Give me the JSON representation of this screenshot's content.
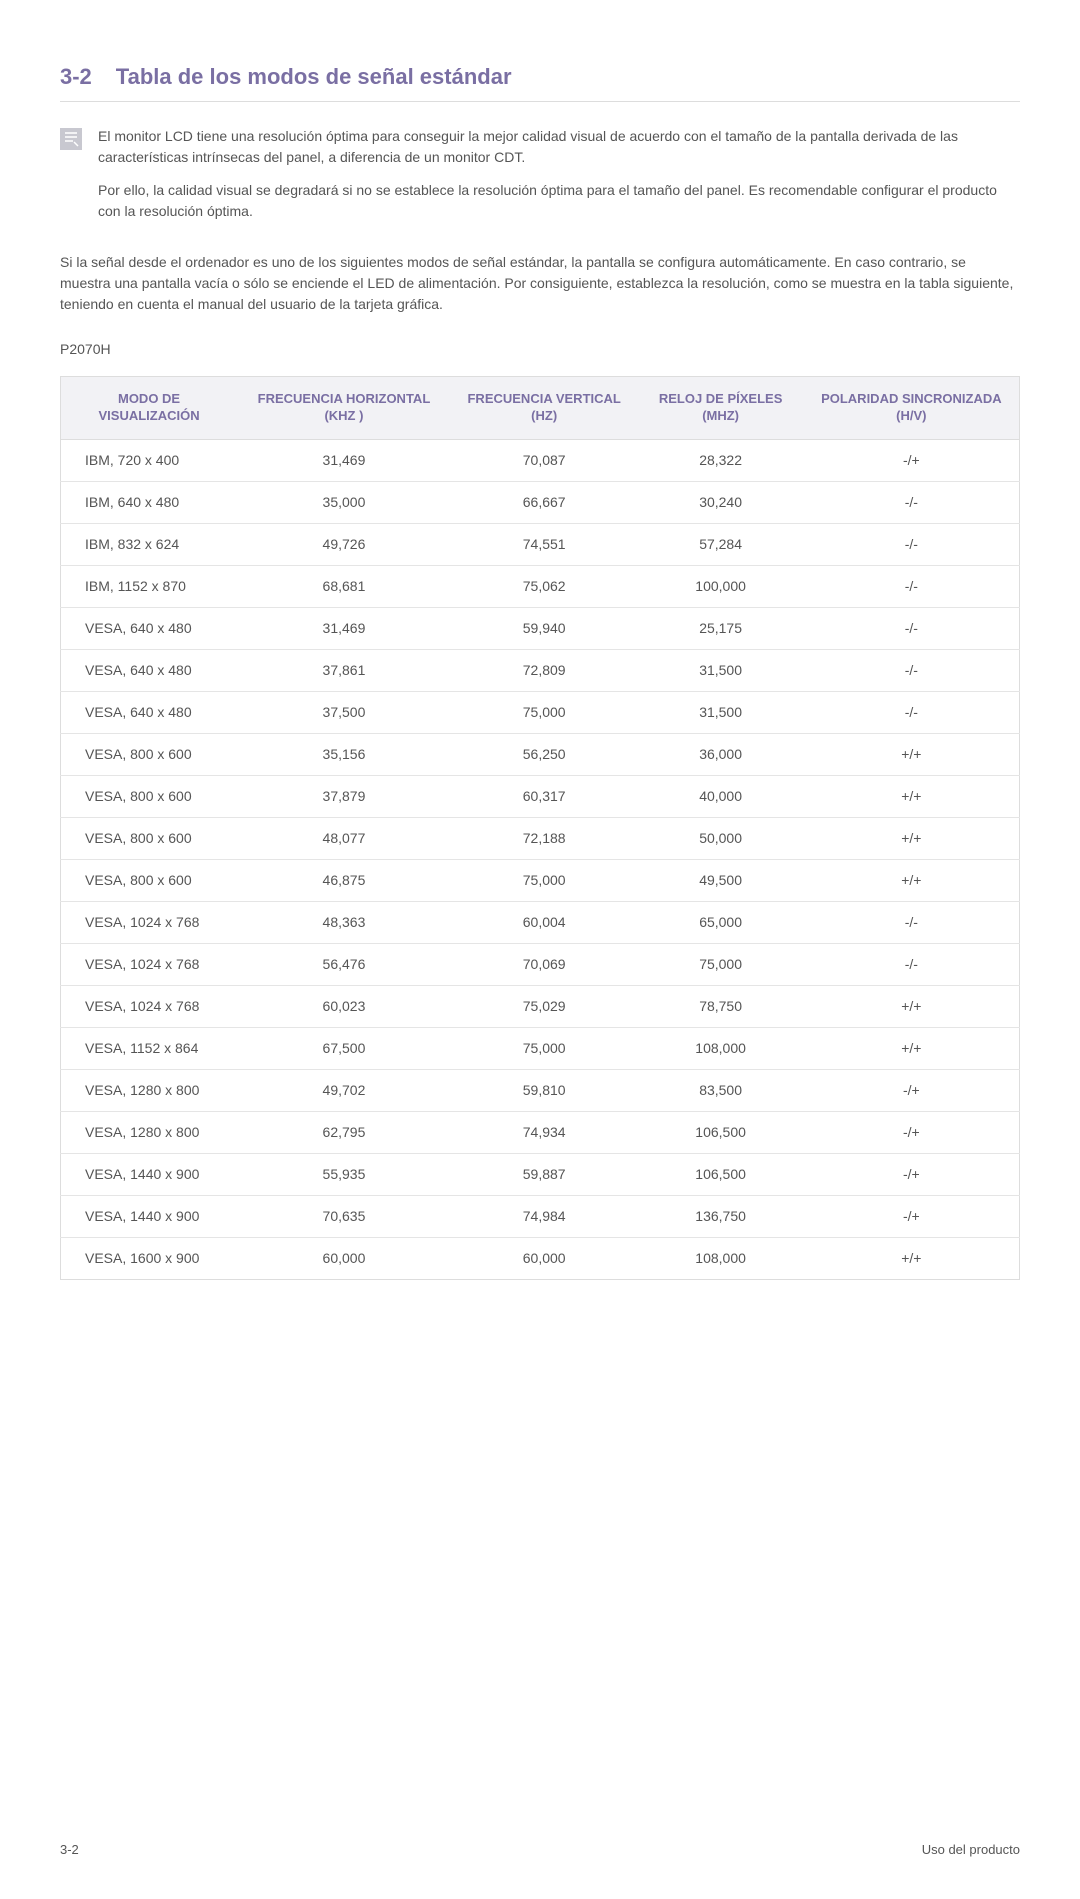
{
  "heading": {
    "number": "3-2",
    "title": "Tabla de los modos de señal estándar"
  },
  "note": {
    "p1": "El monitor LCD tiene una resolución óptima para conseguir la mejor calidad visual de acuerdo con el tamaño de la pantalla derivada de las características intrínsecas del panel, a diferencia de un monitor CDT.",
    "p2": "Por ello, la calidad visual se degradará si no se establece la resolución óptima para el tamaño del panel. Es recomendable configurar el producto con la resolución óptima."
  },
  "body": "Si la señal desde el ordenador es uno de los siguientes modos de señal estándar, la pantalla se configura automáticamente. En caso contrario, se muestra una pantalla vacía o sólo se enciende el LED de alimentación. Por consiguiente, establezca la resolución, como se muestra en la tabla siguiente, teniendo en cuenta el manual del usuario de la tarjeta gráfica.",
  "model": "P2070H",
  "table": {
    "columns": [
      "MODO DE VISUALIZACIÓN",
      "FRECUENCIA HORIZONTAL (KHZ )",
      "FRECUENCIA VERTICAL (HZ)",
      "RELOJ DE PÍXELES (MHZ)",
      "POLARIDAD SINCRONIZADA (H/V)"
    ],
    "rows": [
      [
        "IBM, 720 x 400",
        "31,469",
        "70,087",
        "28,322",
        "-/+"
      ],
      [
        "IBM, 640 x 480",
        "35,000",
        "66,667",
        "30,240",
        "-/-"
      ],
      [
        "IBM, 832 x 624",
        "49,726",
        "74,551",
        "57,284",
        "-/-"
      ],
      [
        "IBM, 1152 x 870",
        "68,681",
        "75,062",
        "100,000",
        "-/-"
      ],
      [
        "VESA, 640 x 480",
        "31,469",
        "59,940",
        "25,175",
        "-/-"
      ],
      [
        "VESA, 640 x 480",
        "37,861",
        "72,809",
        "31,500",
        "-/-"
      ],
      [
        "VESA, 640 x 480",
        "37,500",
        "75,000",
        "31,500",
        "-/-"
      ],
      [
        "VESA, 800 x 600",
        "35,156",
        "56,250",
        "36,000",
        "+/+"
      ],
      [
        "VESA, 800 x 600",
        "37,879",
        "60,317",
        "40,000",
        "+/+"
      ],
      [
        "VESA, 800 x 600",
        "48,077",
        "72,188",
        "50,000",
        "+/+"
      ],
      [
        "VESA, 800 x 600",
        "46,875",
        "75,000",
        "49,500",
        "+/+"
      ],
      [
        "VESA, 1024 x 768",
        "48,363",
        "60,004",
        "65,000",
        "-/-"
      ],
      [
        "VESA, 1024 x 768",
        "56,476",
        "70,069",
        "75,000",
        "-/-"
      ],
      [
        "VESA, 1024 x 768",
        "60,023",
        "75,029",
        "78,750",
        "+/+"
      ],
      [
        "VESA, 1152 x 864",
        "67,500",
        "75,000",
        "108,000",
        "+/+"
      ],
      [
        "VESA, 1280 x 800",
        "49,702",
        "59,810",
        "83,500",
        "-/+"
      ],
      [
        "VESA, 1280 x 800",
        "62,795",
        "74,934",
        "106,500",
        "-/+"
      ],
      [
        "VESA, 1440 x 900",
        "55,935",
        "59,887",
        "106,500",
        "-/+"
      ],
      [
        "VESA, 1440 x 900",
        "70,635",
        "74,984",
        "136,750",
        "-/+"
      ],
      [
        "VESA, 1600 x 900",
        "60,000",
        "60,000",
        "108,000",
        "+/+"
      ]
    ]
  },
  "footer": {
    "left": "3-2",
    "right": "Uso del producto"
  },
  "styling": {
    "accent_color": "#7a6fa3",
    "text_color": "#555555",
    "header_bg": "#f2f2f5",
    "border_color": "#dddddd",
    "row_border": "#e5e5e5"
  }
}
